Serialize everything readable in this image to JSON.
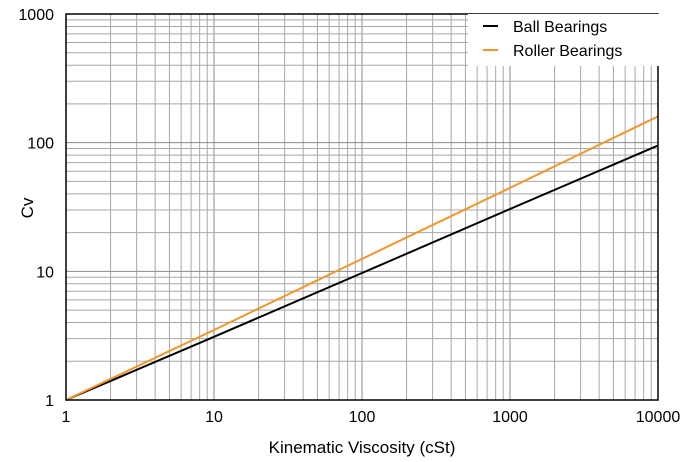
{
  "chart_data": {
    "type": "line",
    "title": "",
    "xlabel": "Kinematic Viscosity (cSt)",
    "ylabel": "Cv",
    "xscale": "log",
    "yscale": "log",
    "xlim": [
      1,
      10000
    ],
    "ylim": [
      1,
      1000
    ],
    "x_tick_labels": [
      "1",
      "10",
      "100",
      "1000",
      "10000"
    ],
    "y_tick_labels": [
      "1",
      "10",
      "100",
      "1000"
    ],
    "grid": true,
    "legend_position": "top-right",
    "series": [
      {
        "name": "Ball Bearings",
        "color": "#000000",
        "x": [
          1,
          10,
          100,
          1000,
          10000
        ],
        "y": [
          1,
          3.1,
          9.7,
          30.5,
          95
        ]
      },
      {
        "name": "Roller Bearings",
        "color": "#f0962a",
        "x": [
          1,
          10,
          100,
          1000,
          10000
        ],
        "y": [
          1,
          3.5,
          12.5,
          44.5,
          160
        ]
      }
    ]
  }
}
